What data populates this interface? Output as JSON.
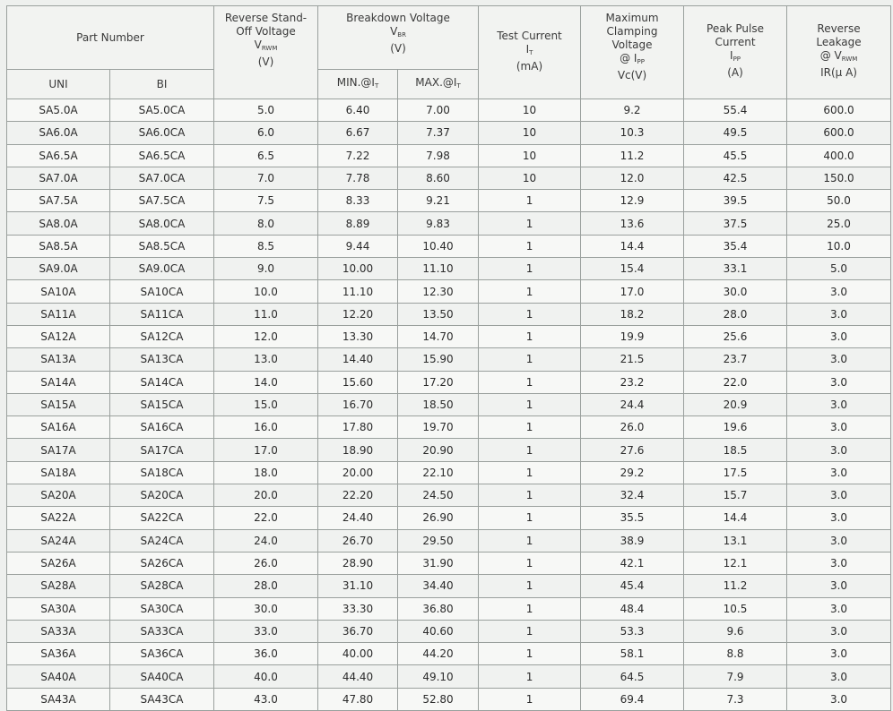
{
  "header": {
    "part_number": "Part Number",
    "uni": "UNI",
    "bi": "BI",
    "reverse_standoff": {
      "line1": "Reverse Stand-",
      "line2": "Off Voltage",
      "symbol": "V",
      "symbol_sub": "RWM",
      "unit": "(V)"
    },
    "breakdown": {
      "line1": "Breakdown Voltage",
      "symbol": "V",
      "symbol_sub": "BR",
      "unit": "(V)",
      "min": "MIN.@I",
      "min_sub": "T",
      "max": "MAX.@I",
      "max_sub": "T"
    },
    "test_current": {
      "line1": "Test Current",
      "symbol": "I",
      "symbol_sub": "T",
      "unit": "(mA)"
    },
    "clamping": {
      "line1": "Maximum",
      "line2": "Clamping",
      "line3": "Voltage",
      "line4": "@ I",
      "line4_sub": "PP",
      "unit": "Vc(V)"
    },
    "peak_pulse": {
      "line1": "Peak Pulse",
      "line2": "Current",
      "symbol": "I",
      "symbol_sub": "PP",
      "unit": "(A)"
    },
    "leakage": {
      "line1": "Reverse",
      "line2": "Leakage",
      "line3": "@ V",
      "line3_sub": "RWM",
      "unit": "IR(μ A)"
    }
  },
  "rows": [
    [
      "SA5.0A",
      "SA5.0CA",
      "5.0",
      "6.40",
      "7.00",
      "10",
      "9.2",
      "55.4",
      "600.0"
    ],
    [
      "SA6.0A",
      "SA6.0CA",
      "6.0",
      "6.67",
      "7.37",
      "10",
      "10.3",
      "49.5",
      "600.0"
    ],
    [
      "SA6.5A",
      "SA6.5CA",
      "6.5",
      "7.22",
      "7.98",
      "10",
      "11.2",
      "45.5",
      "400.0"
    ],
    [
      "SA7.0A",
      "SA7.0CA",
      "7.0",
      "7.78",
      "8.60",
      "10",
      "12.0",
      "42.5",
      "150.0"
    ],
    [
      "SA7.5A",
      "SA7.5CA",
      "7.5",
      "8.33",
      "9.21",
      "1",
      "12.9",
      "39.5",
      "50.0"
    ],
    [
      "SA8.0A",
      "SA8.0CA",
      "8.0",
      "8.89",
      "9.83",
      "1",
      "13.6",
      "37.5",
      "25.0"
    ],
    [
      "SA8.5A",
      "SA8.5CA",
      "8.5",
      "9.44",
      "10.40",
      "1",
      "14.4",
      "35.4",
      "10.0"
    ],
    [
      "SA9.0A",
      "SA9.0CA",
      "9.0",
      "10.00",
      "11.10",
      "1",
      "15.4",
      "33.1",
      "5.0"
    ],
    [
      "SA10A",
      "SA10CA",
      "10.0",
      "11.10",
      "12.30",
      "1",
      "17.0",
      "30.0",
      "3.0"
    ],
    [
      "SA11A",
      "SA11CA",
      "11.0",
      "12.20",
      "13.50",
      "1",
      "18.2",
      "28.0",
      "3.0"
    ],
    [
      "SA12A",
      "SA12CA",
      "12.0",
      "13.30",
      "14.70",
      "1",
      "19.9",
      "25.6",
      "3.0"
    ],
    [
      "SA13A",
      "SA13CA",
      "13.0",
      "14.40",
      "15.90",
      "1",
      "21.5",
      "23.7",
      "3.0"
    ],
    [
      "SA14A",
      "SA14CA",
      "14.0",
      "15.60",
      "17.20",
      "1",
      "23.2",
      "22.0",
      "3.0"
    ],
    [
      "SA15A",
      "SA15CA",
      "15.0",
      "16.70",
      "18.50",
      "1",
      "24.4",
      "20.9",
      "3.0"
    ],
    [
      "SA16A",
      "SA16CA",
      "16.0",
      "17.80",
      "19.70",
      "1",
      "26.0",
      "19.6",
      "3.0"
    ],
    [
      "SA17A",
      "SA17CA",
      "17.0",
      "18.90",
      "20.90",
      "1",
      "27.6",
      "18.5",
      "3.0"
    ],
    [
      "SA18A",
      "SA18CA",
      "18.0",
      "20.00",
      "22.10",
      "1",
      "29.2",
      "17.5",
      "3.0"
    ],
    [
      "SA20A",
      "SA20CA",
      "20.0",
      "22.20",
      "24.50",
      "1",
      "32.4",
      "15.7",
      "3.0"
    ],
    [
      "SA22A",
      "SA22CA",
      "22.0",
      "24.40",
      "26.90",
      "1",
      "35.5",
      "14.4",
      "3.0"
    ],
    [
      "SA24A",
      "SA24CA",
      "24.0",
      "26.70",
      "29.50",
      "1",
      "38.9",
      "13.1",
      "3.0"
    ],
    [
      "SA26A",
      "SA26CA",
      "26.0",
      "28.90",
      "31.90",
      "1",
      "42.1",
      "12.1",
      "3.0"
    ],
    [
      "SA28A",
      "SA28CA",
      "28.0",
      "31.10",
      "34.40",
      "1",
      "45.4",
      "11.2",
      "3.0"
    ],
    [
      "SA30A",
      "SA30CA",
      "30.0",
      "33.30",
      "36.80",
      "1",
      "48.4",
      "10.5",
      "3.0"
    ],
    [
      "SA33A",
      "SA33CA",
      "33.0",
      "36.70",
      "40.60",
      "1",
      "53.3",
      "9.6",
      "3.0"
    ],
    [
      "SA36A",
      "SA36CA",
      "36.0",
      "40.00",
      "44.20",
      "1",
      "58.1",
      "8.8",
      "3.0"
    ],
    [
      "SA40A",
      "SA40CA",
      "40.0",
      "44.40",
      "49.10",
      "1",
      "64.5",
      "7.9",
      "3.0"
    ],
    [
      "SA43A",
      "SA43CA",
      "43.0",
      "47.80",
      "52.80",
      "1",
      "69.4",
      "7.3",
      "3.0"
    ]
  ]
}
